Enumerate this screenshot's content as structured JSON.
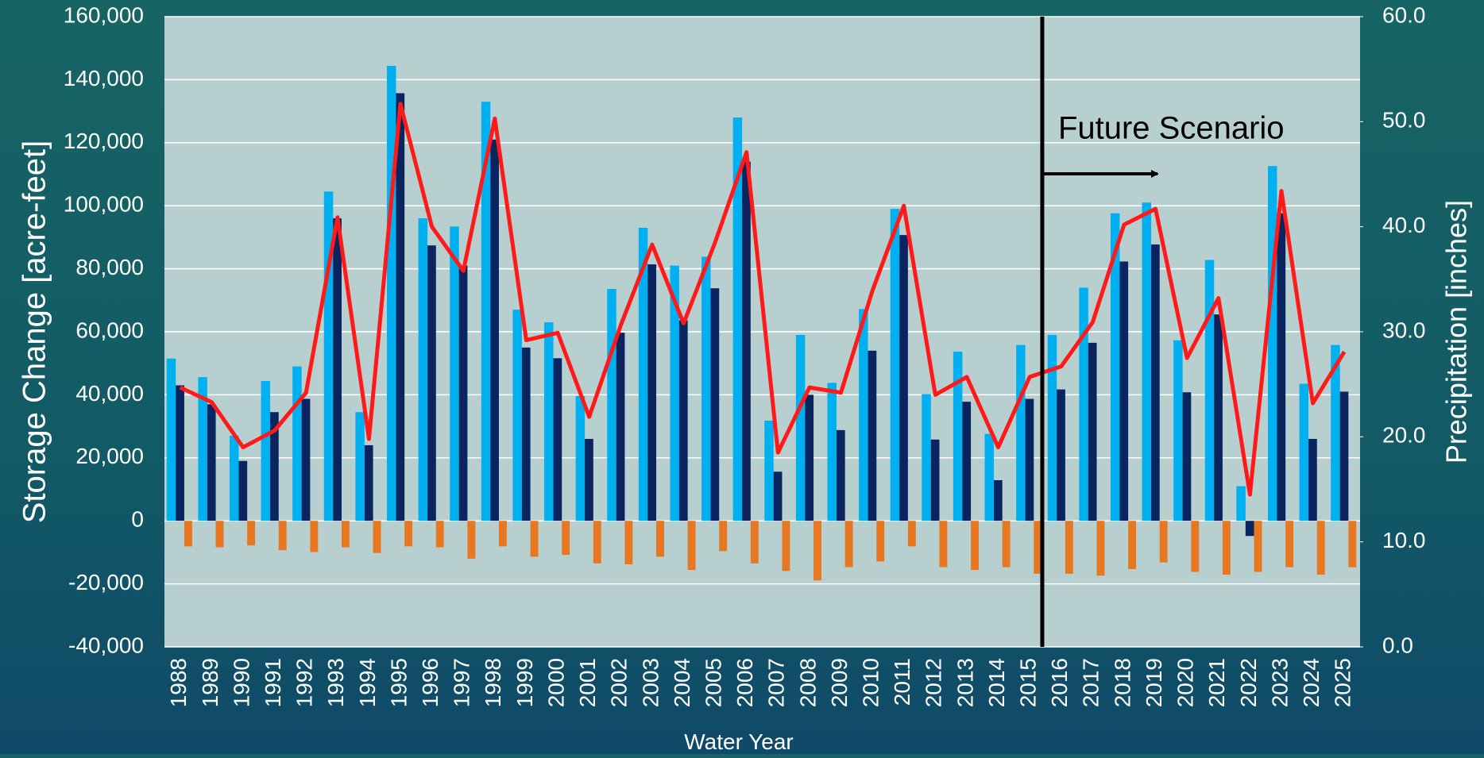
{
  "chart_data": {
    "type": "bar",
    "categories": [
      "1988",
      "1989",
      "1990",
      "1991",
      "1992",
      "1993",
      "1994",
      "1995",
      "1996",
      "1997",
      "1998",
      "1999",
      "2000",
      "2001",
      "2002",
      "2003",
      "2004",
      "2005",
      "2006",
      "2007",
      "2008",
      "2009",
      "2010",
      "2011",
      "2012",
      "2013",
      "2014",
      "2015",
      "2016",
      "2017",
      "2018",
      "2019",
      "2020",
      "2021",
      "2022",
      "2023",
      "2024",
      "2025"
    ],
    "series": [
      {
        "color": "#00b0f0",
        "values": [
          51500,
          45600,
          27000,
          44400,
          49000,
          104500,
          34500,
          144400,
          96000,
          93400,
          133000,
          67000,
          63000,
          39600,
          73600,
          93000,
          81000,
          83800,
          128000,
          31800,
          59000,
          43800,
          67200,
          99000,
          40200,
          53700,
          27600,
          55800,
          59000,
          74000,
          97600,
          101000,
          57300,
          82800,
          11000,
          112600,
          43500,
          55800
        ]
      },
      {
        "color": "#0a2460",
        "values": [
          43000,
          37000,
          19000,
          34500,
          38700,
          96000,
          24000,
          135700,
          87400,
          81000,
          121000,
          55000,
          51600,
          26000,
          59700,
          81400,
          63600,
          73800,
          114000,
          15600,
          40000,
          28800,
          54000,
          90700,
          25800,
          37800,
          12900,
          38700,
          41700,
          56500,
          82300,
          87700,
          40800,
          65500,
          -4800,
          97600,
          26000,
          41000
        ]
      },
      {
        "color": "#e87722",
        "values": [
          -8100,
          -8400,
          -7800,
          -9300,
          -9900,
          -8400,
          -10200,
          -8100,
          -8400,
          -12000,
          -8100,
          -11400,
          -10800,
          -13500,
          -13800,
          -11400,
          -15600,
          -9600,
          -13500,
          -15900,
          -18900,
          -14700,
          -12900,
          -8100,
          -14700,
          -15600,
          -14700,
          -16800,
          -16800,
          -17400,
          -15300,
          -13200,
          -16200,
          -17100,
          -16200,
          -14700,
          -17100,
          -14700
        ]
      },
      {
        "type": "line",
        "axis": "y2",
        "color": "#ff1a1a",
        "values": [
          24.7,
          23.3,
          19.0,
          20.6,
          24.2,
          40.9,
          19.8,
          51.7,
          40.0,
          35.8,
          50.3,
          29.2,
          29.9,
          21.9,
          30.6,
          38.3,
          30.8,
          38.5,
          47.1,
          18.5,
          24.7,
          24.2,
          33.9,
          42.0,
          24.0,
          25.7,
          19.0,
          25.7,
          26.7,
          30.9,
          40.2,
          41.7,
          27.5,
          33.2,
          14.5,
          43.4,
          23.2,
          28.1
        ]
      }
    ],
    "ylim": [
      -40000,
      160000
    ],
    "yticks": [
      {
        "value": -40000,
        "label": "-40,000"
      },
      {
        "value": -20000,
        "label": "-20,000"
      },
      0,
      {
        "value": 20000,
        "label": "20,000"
      },
      {
        "value": 40000,
        "label": "40,000"
      },
      {
        "value": 60000,
        "label": "60,000"
      },
      {
        "value": 80000,
        "label": "80,000"
      },
      {
        "value": 100000,
        "label": "100,000"
      },
      {
        "value": 120000,
        "label": "120,000"
      },
      {
        "value": 140000,
        "label": "140,000"
      },
      {
        "value": 160000,
        "label": "160,000"
      }
    ],
    "y2lim": [
      0,
      60
    ],
    "y2ticks": [
      {
        "value": 0,
        "label": "0.0"
      },
      {
        "value": 10,
        "label": "10.0"
      },
      {
        "value": 20,
        "label": "20.0"
      },
      {
        "value": 30,
        "label": "30.0"
      },
      {
        "value": 40,
        "label": "40.0"
      },
      {
        "value": 50,
        "label": "50.0"
      },
      {
        "value": 60,
        "label": "60.0"
      }
    ],
    "grid": true,
    "xlabel": "Water Year",
    "ylabel": "Storage Change [acre-feet]",
    "y2label": "Precipitation [inches]",
    "annotation": "Future Scenario"
  }
}
